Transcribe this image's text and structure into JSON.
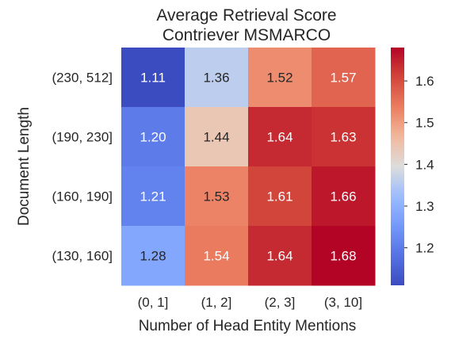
{
  "chart_data": {
    "type": "heatmap",
    "title": "Average Retrieval Score",
    "subtitle": "Contriever MSMARCO",
    "xlabel": "Number of Head Entity Mentions",
    "ylabel": "Document Length",
    "x_categories": [
      "(0, 1]",
      "(1, 2]",
      "(2, 3]",
      "(3, 10]"
    ],
    "y_categories": [
      "(230, 512]",
      "(190, 230]",
      "(160, 190]",
      "(130, 160]"
    ],
    "values": [
      [
        1.11,
        1.36,
        1.52,
        1.57
      ],
      [
        1.2,
        1.44,
        1.64,
        1.63
      ],
      [
        1.21,
        1.53,
        1.61,
        1.66
      ],
      [
        1.28,
        1.54,
        1.64,
        1.68
      ]
    ],
    "value_labels": [
      [
        "1.11",
        "1.36",
        "1.52",
        "1.57"
      ],
      [
        "1.20",
        "1.44",
        "1.64",
        "1.63"
      ],
      [
        "1.21",
        "1.53",
        "1.61",
        "1.66"
      ],
      [
        "1.28",
        "1.54",
        "1.64",
        "1.68"
      ]
    ],
    "colorbar": {
      "colormap": "coolwarm",
      "vmin": 1.11,
      "vmax": 1.68,
      "ticks": [
        1.2,
        1.3,
        1.4,
        1.5,
        1.6
      ],
      "tick_labels": [
        "1.2",
        "1.3",
        "1.4",
        "1.5",
        "1.6"
      ]
    },
    "colors": {
      "low": "#3b4cc0",
      "mid": "#dddcdc",
      "high": "#b40426",
      "text_light": "#ffffff",
      "text_dark": "#262626"
    },
    "grid": false,
    "legend": "colorbar-right"
  }
}
